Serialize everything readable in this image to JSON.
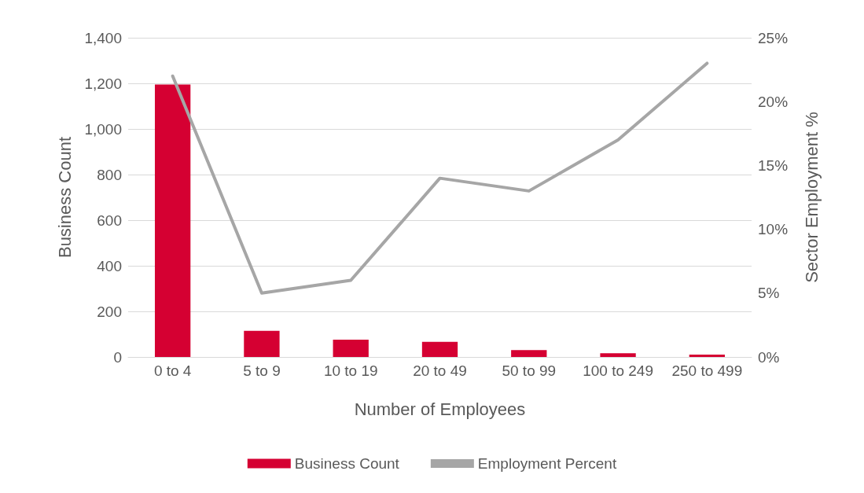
{
  "chart_data": {
    "type": "bar",
    "xlabel": "Number of Employees",
    "ylabel": "Business Count",
    "y2label": "Sector Employment %",
    "categories": [
      "0 to 4",
      "5 to 9",
      "10 to 19",
      "20 to 49",
      "50 to 99",
      "100 to 249",
      "250 to 499"
    ],
    "series": [
      {
        "name": "Business Count",
        "color": "#d50032",
        "values": [
          1195,
          115,
          76,
          66,
          30,
          16,
          10
        ]
      },
      {
        "name": "Employment Percent",
        "type": "line",
        "axis": "y2",
        "color": "#a6a6a6",
        "values": [
          22,
          5,
          6,
          14,
          13,
          17,
          23
        ]
      }
    ],
    "ylim": [
      0,
      1400
    ],
    "yticks": [
      0,
      {
        "value": 200,
        "label": "200"
      },
      {
        "value": 400,
        "label": "400"
      },
      {
        "value": 600,
        "label": "600"
      },
      {
        "value": 800,
        "label": "800"
      },
      {
        "value": 1000,
        "label": "1,000"
      },
      {
        "value": 1200,
        "label": "1,200"
      },
      {
        "value": 1400,
        "label": "1,400"
      }
    ],
    "y2lim": [
      0,
      25
    ],
    "y2ticks": [
      {
        "value": 0,
        "label": "0%"
      },
      {
        "value": 5,
        "label": "5%"
      },
      {
        "value": 10,
        "label": "10%"
      },
      {
        "value": 15,
        "label": "15%"
      },
      {
        "value": 20,
        "label": "20%"
      },
      {
        "value": 25,
        "label": "25%"
      }
    ],
    "grid": "y",
    "legend": "bottom",
    "marker": "none",
    "line_style": "solid"
  }
}
